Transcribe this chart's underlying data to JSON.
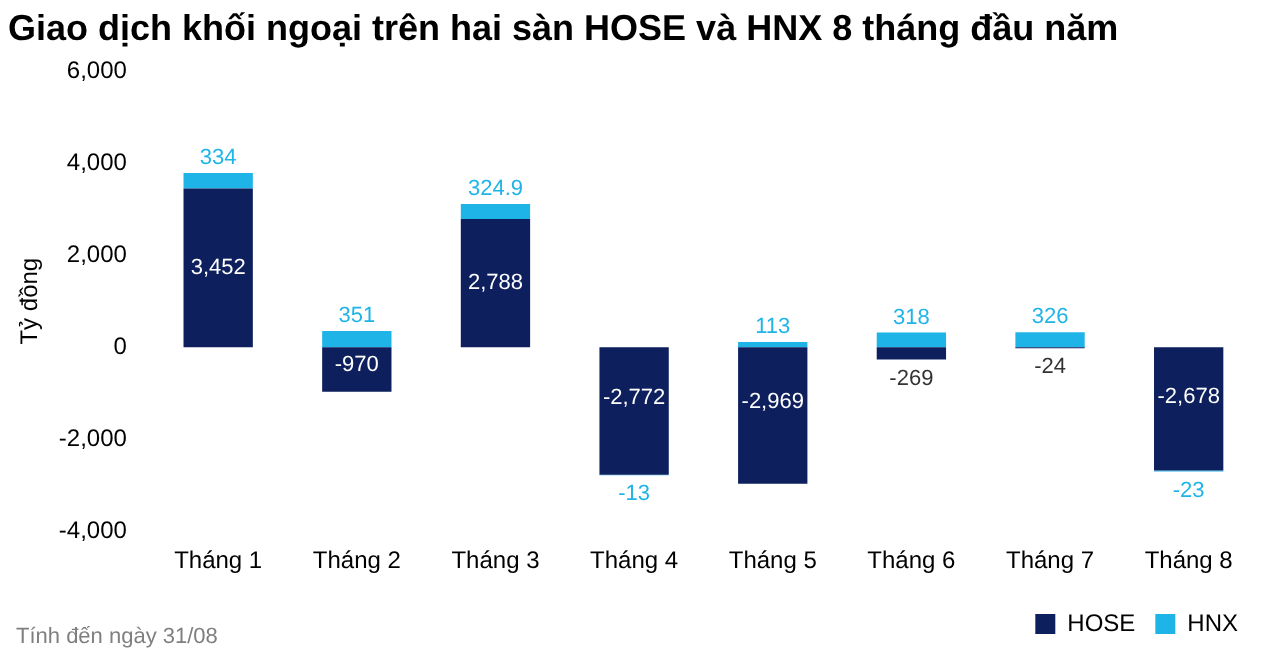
{
  "chart_data": {
    "type": "bar",
    "title": "Giao dịch khối ngoại trên hai sàn HOSE và HNX 8 tháng đầu năm",
    "ylabel": "Tỷ đồng",
    "categories": [
      "Tháng 1",
      "Tháng 2",
      "Tháng 3",
      "Tháng 4",
      "Tháng 5",
      "Tháng 6",
      "Tháng 7",
      "Tháng 8"
    ],
    "stacked": true,
    "series": [
      {
        "name": "HOSE",
        "color": "#0d1f5c",
        "values": [
          3452,
          -970,
          2788,
          -2772,
          -2969,
          -269,
          -24,
          -2678
        ],
        "value_labels": [
          "3,452",
          "-970",
          "2,788",
          "-2,772",
          "-2,969",
          "-269",
          "-24",
          "-2,678"
        ]
      },
      {
        "name": "HNX",
        "color": "#1fb4e8",
        "values": [
          334,
          351,
          324.9,
          -13,
          113,
          318,
          326,
          -23
        ],
        "value_labels": [
          "334",
          "351",
          "324.9",
          "-13",
          "113",
          "318",
          "326",
          "-23"
        ]
      }
    ],
    "ylim": [
      -4000,
      6000
    ],
    "yticks": [
      {
        "value": -4000,
        "label": "-4,000"
      },
      {
        "value": -2000,
        "label": "-2,000"
      },
      {
        "value": 0,
        "label": "0"
      },
      {
        "value": 2000,
        "label": "2,000"
      },
      {
        "value": 4000,
        "label": "4,000"
      },
      {
        "value": 6000,
        "label": "6,000"
      }
    ],
    "grid": false,
    "legend": "bottom right",
    "annotations": [
      "Tính đến ngày 31/08"
    ]
  }
}
